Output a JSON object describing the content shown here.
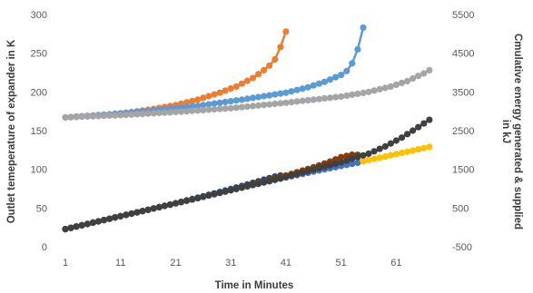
{
  "chart_data": {
    "type": "line",
    "xlabel": "Time in Minutes",
    "ylabel_left": "Outlet temeperature of expander in K",
    "ylabel_right_line1": "Cmulative energy generated & supplied",
    "ylabel_right_line2": "in kJ",
    "x_ticks": [
      1,
      11,
      21,
      31,
      41,
      51,
      61
    ],
    "xlim": [
      1,
      69
    ],
    "y_left_ticks": [
      0,
      50,
      100,
      150,
      200,
      250,
      300
    ],
    "y_left_lim": [
      0,
      300
    ],
    "y_right_ticks": [
      -500,
      500,
      1500,
      2500,
      3500,
      4500,
      5500
    ],
    "y_right_lim": [
      -500,
      5500
    ],
    "grid": false,
    "legend": "none",
    "series": [
      {
        "color": "#ED7D31",
        "axis": "left",
        "points": [
          [
            1,
            167
          ],
          [
            5,
            169
          ],
          [
            9,
            171
          ],
          [
            13,
            174
          ],
          [
            17,
            178
          ],
          [
            21,
            183
          ],
          [
            25,
            190
          ],
          [
            29,
            199
          ],
          [
            32,
            207
          ],
          [
            35,
            218
          ],
          [
            37,
            228
          ],
          [
            38,
            234
          ],
          [
            39,
            242
          ],
          [
            40,
            258
          ],
          [
            41,
            278
          ]
        ]
      },
      {
        "color": "#5B9BD5",
        "axis": "left",
        "points": [
          [
            1,
            167
          ],
          [
            9,
            171
          ],
          [
            17,
            176
          ],
          [
            25,
            182
          ],
          [
            33,
            190
          ],
          [
            41,
            199
          ],
          [
            45,
            206
          ],
          [
            48,
            213
          ],
          [
            51,
            222
          ],
          [
            52,
            227
          ],
          [
            53,
            237
          ],
          [
            54,
            255
          ],
          [
            55,
            283
          ]
        ]
      },
      {
        "color": "#A5A5A5",
        "axis": "left",
        "points": [
          [
            1,
            167
          ],
          [
            11,
            170
          ],
          [
            21,
            174
          ],
          [
            31,
            179
          ],
          [
            41,
            186
          ],
          [
            51,
            194
          ],
          [
            56,
            200
          ],
          [
            60,
            207
          ],
          [
            63,
            214
          ],
          [
            66,
            224
          ],
          [
            67,
            228
          ]
        ]
      },
      {
        "color": "#264478",
        "axis": "right",
        "points": [
          [
            1,
            -45
          ],
          [
            6,
            120
          ],
          [
            11,
            290
          ],
          [
            16,
            455
          ],
          [
            21,
            625
          ],
          [
            26,
            805
          ],
          [
            31,
            990
          ],
          [
            34,
            1110
          ],
          [
            37,
            1235
          ],
          [
            39,
            1315
          ],
          [
            40,
            1340
          ],
          [
            41,
            1330
          ]
        ]
      },
      {
        "color": "#843C0C",
        "axis": "right",
        "points": [
          [
            1,
            -45
          ],
          [
            11,
            290
          ],
          [
            21,
            620
          ],
          [
            31,
            960
          ],
          [
            41,
            1340
          ],
          [
            46,
            1555
          ],
          [
            49,
            1700
          ],
          [
            51,
            1815
          ],
          [
            53,
            1880
          ],
          [
            54,
            1875
          ]
        ]
      },
      {
        "color": "#4472C4",
        "axis": "right",
        "points": [
          [
            1,
            -45
          ],
          [
            11,
            290
          ],
          [
            21,
            620
          ],
          [
            31,
            960
          ],
          [
            41,
            1290
          ],
          [
            47,
            1470
          ],
          [
            51,
            1585
          ],
          [
            54,
            1670
          ],
          [
            55,
            1710
          ]
        ]
      },
      {
        "color": "#FFC000",
        "axis": "right",
        "points": [
          [
            55,
            1710
          ],
          [
            58,
            1800
          ],
          [
            61,
            1895
          ],
          [
            64,
            1985
          ],
          [
            67,
            2080
          ]
        ]
      },
      {
        "color": "#404040",
        "axis": "right",
        "points": [
          [
            1,
            -45
          ],
          [
            11,
            290
          ],
          [
            21,
            620
          ],
          [
            31,
            960
          ],
          [
            41,
            1300
          ],
          [
            51,
            1680
          ],
          [
            56,
            1905
          ],
          [
            59,
            2090
          ],
          [
            62,
            2320
          ],
          [
            65,
            2590
          ],
          [
            67,
            2780
          ]
        ]
      }
    ]
  }
}
